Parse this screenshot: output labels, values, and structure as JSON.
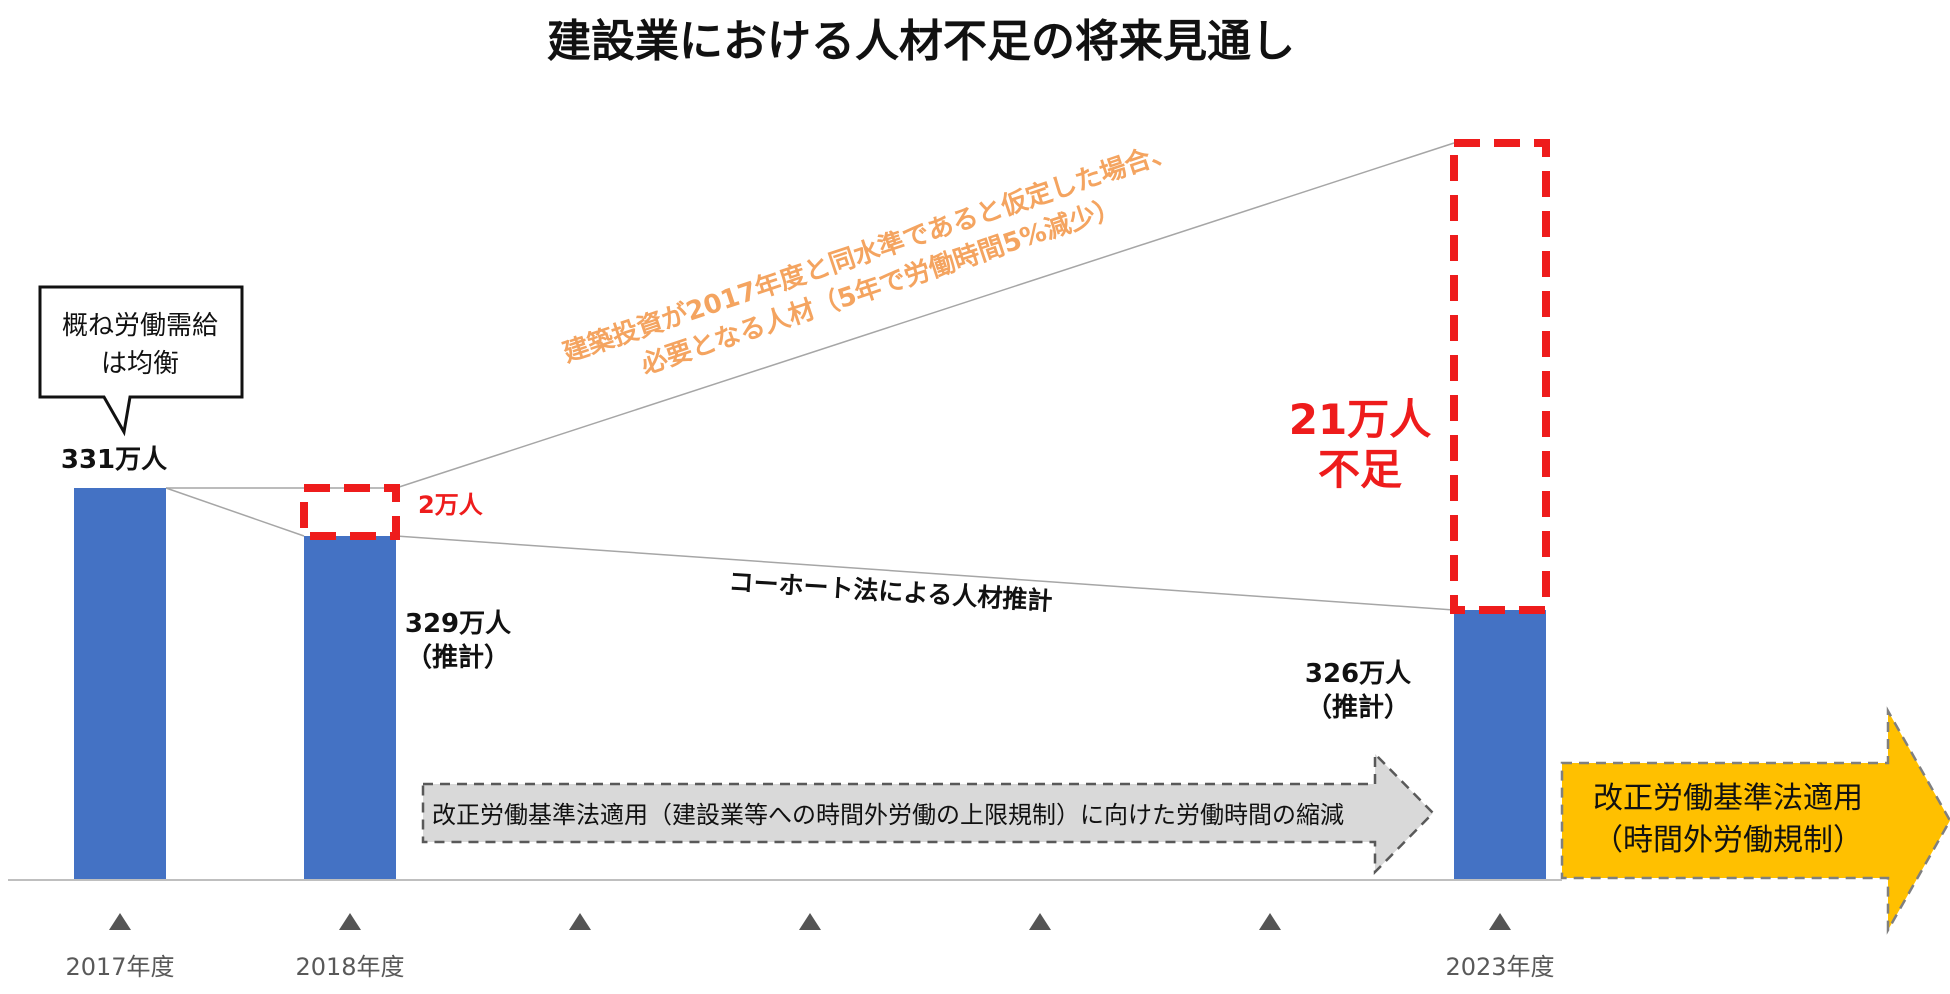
{
  "chart_data": {
    "type": "bar",
    "title": "建設業における人材不足の将来見通し",
    "categories": [
      "2017年度",
      "2018年度",
      "",
      "",
      "",
      "",
      "2023年度"
    ],
    "values": [
      331,
      329,
      null,
      null,
      null,
      null,
      326
    ],
    "unit": "万人",
    "value_labels": [
      "331万人",
      "329万人\n（推計）",
      "",
      "",
      "",
      "",
      "326万人\n（推計）"
    ],
    "required_2023": 347,
    "gap_labels": {
      "y2018": "2万人",
      "y2023": "21万人\n不足"
    },
    "annotations": {
      "callout": "概ね労働需給\nは均衡",
      "upper_line": "建築投資が2017年度と同水準であると仮定した場合、\n必要となる人材（5年で労働時間5%減少）",
      "lower_line": "コーホート法による人材推計",
      "gray_arrow": "改正労働基準法適用（建設業等への時間外労働の上限規制）に向けた労働時間の縮減",
      "gold_arrow": "改正労働基準法適用\n（時間外労働規制）"
    },
    "colors": {
      "bar": "#4472C4",
      "gap": "#EE1C1C",
      "upper_text": "#F4A460",
      "gold": "#FFC000",
      "gray_arrow": "#D9D9D9"
    }
  }
}
